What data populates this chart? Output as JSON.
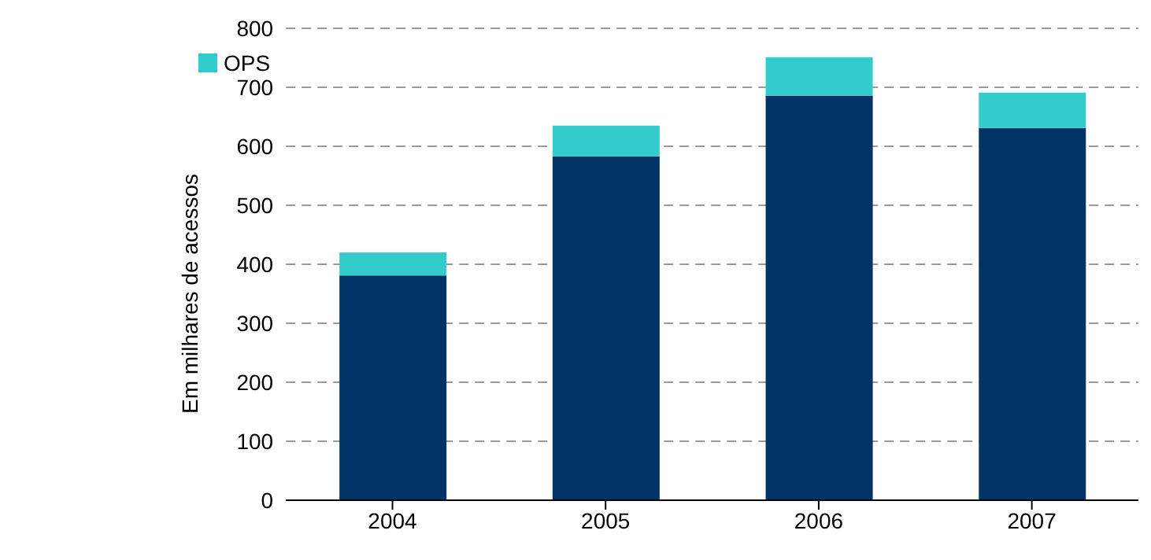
{
  "chart_data": {
    "type": "bar",
    "stacked": true,
    "ylabel": "Em milhares de acessos",
    "categories": [
      "2004",
      "2005",
      "2006",
      "2007"
    ],
    "series": [
      {
        "color": "#003366",
        "values": [
          381,
          583,
          686,
          631
        ]
      },
      {
        "name": "OPS",
        "color": "#33cccc",
        "values": [
          39,
          52,
          65,
          60
        ]
      }
    ],
    "ylim": [
      0,
      800
    ],
    "yticks": [
      0,
      100,
      200,
      300,
      400,
      500,
      600,
      700,
      800
    ],
    "grid": "y",
    "legend": "top left"
  }
}
